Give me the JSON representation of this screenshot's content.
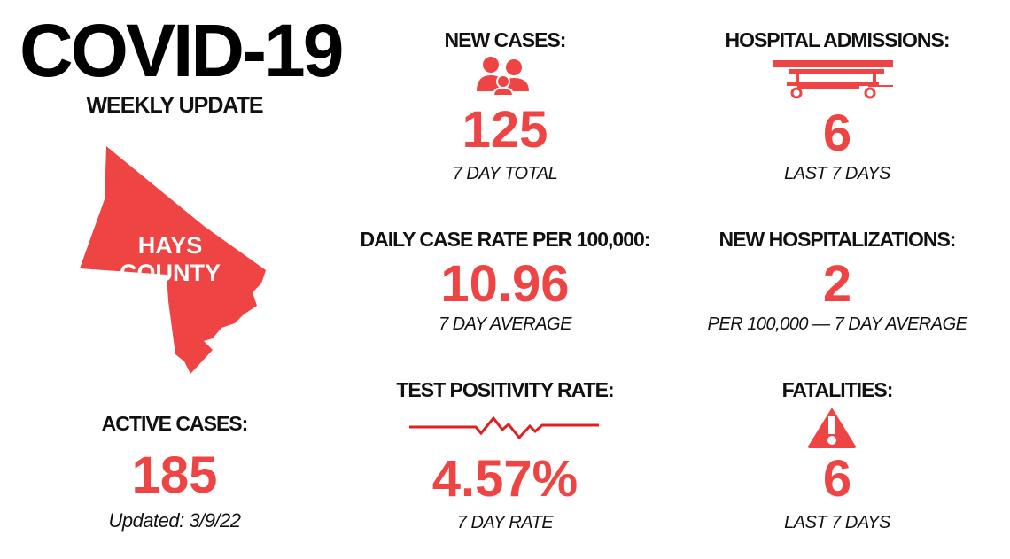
{
  "title": "COVID-19",
  "subtitle": "WEEKLY UPDATE",
  "county": {
    "line1": "HAYS",
    "line2": "COUNTY"
  },
  "accent_color": "#ee4444",
  "active_cases": {
    "label": "ACTIVE CASES:",
    "value": "185",
    "updated": "Updated: 3/9/22"
  },
  "new_cases": {
    "label": "NEW CASES:",
    "icon": "people-icon",
    "value": "125",
    "note": "7 DAY TOTAL"
  },
  "hospital_admissions": {
    "label": "HOSPITAL ADMISSIONS:",
    "icon": "hospital-bed-icon",
    "value": "6",
    "note": "LAST 7 DAYS"
  },
  "daily_case_rate": {
    "label": "DAILY CASE RATE PER 100,000:",
    "value": "10.96",
    "note": "7 DAY AVERAGE"
  },
  "new_hospitalizations": {
    "label": "NEW HOSPITALIZATIONS:",
    "value": "2",
    "note": "PER 100,000 — 7 DAY AVERAGE"
  },
  "test_positivity": {
    "label": "TEST POSITIVITY RATE:",
    "icon": "pulse-line-icon",
    "value": "4.57%",
    "note": "7 DAY RATE"
  },
  "fatalities": {
    "label": "FATALITIES:",
    "icon": "warning-icon",
    "value": "6",
    "note": "LAST 7 DAYS"
  }
}
